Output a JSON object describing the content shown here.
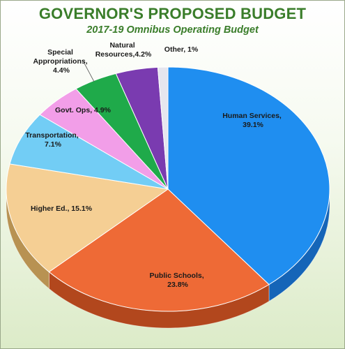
{
  "header": {
    "title": "GOVERNOR'S PROPOSED BUDGET",
    "subtitle": "2017-19 Omnibus Operating Budget"
  },
  "chart_data": {
    "type": "pie",
    "title": "GOVERNOR'S PROPOSED BUDGET",
    "subtitle": "2017-19 Omnibus Operating Budget",
    "slices": [
      {
        "label": "Human Services,",
        "value_label": "39.1%",
        "value": 39.1,
        "color": "#1f8ef0",
        "side": "#1565b8"
      },
      {
        "label": "Public Schools,",
        "value_label": "23.8%",
        "value": 23.8,
        "color": "#ee6a36",
        "side": "#b2471d"
      },
      {
        "label": "Higher Ed., 15.1%",
        "value_label": "",
        "value": 15.1,
        "color": "#f5cf94",
        "side": "#b89252"
      },
      {
        "label": "Transportation,",
        "value_label": "7.1%",
        "value": 7.1,
        "color": "#72cdf5",
        "side": "#3e93b8"
      },
      {
        "label": "Govt. Ops, 4.9%",
        "value_label": "",
        "value": 4.9,
        "color": "#f29ee8",
        "side": "#b86aae"
      },
      {
        "label": "Special",
        "label2": "Appropriations,",
        "value_label": "4.4%",
        "value": 4.4,
        "color": "#1faa4a",
        "side": "#137a33"
      },
      {
        "label": "Natural",
        "label2": "Resources,4.2%",
        "value_label": "",
        "value": 4.2,
        "color": "#7a3bb0",
        "side": "#55257e"
      },
      {
        "label": "Other, 1%",
        "value_label": "",
        "value": 1.0,
        "color": "#e6e6ee",
        "side": "#a8a8b0"
      }
    ]
  }
}
